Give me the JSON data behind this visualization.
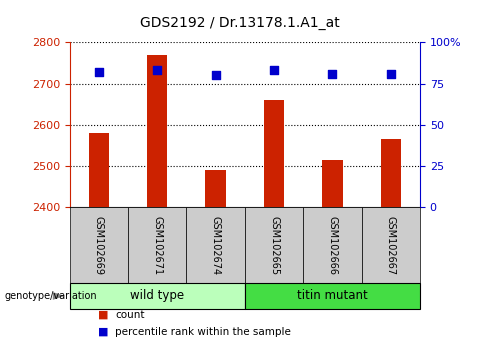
{
  "title": "GDS2192 / Dr.13178.1.A1_at",
  "samples": [
    "GSM102669",
    "GSM102671",
    "GSM102674",
    "GSM102665",
    "GSM102666",
    "GSM102667"
  ],
  "counts": [
    2580,
    2770,
    2490,
    2660,
    2515,
    2565
  ],
  "percentile_ranks": [
    82,
    83,
    80,
    83,
    81,
    81
  ],
  "y_min": 2400,
  "y_max": 2800,
  "y_ticks": [
    2400,
    2500,
    2600,
    2700,
    2800
  ],
  "y2_ticks": [
    0,
    25,
    50,
    75,
    100
  ],
  "y2_labels": [
    "0",
    "25",
    "50",
    "75",
    "100%"
  ],
  "bar_color": "#cc2200",
  "dot_color": "#0000cc",
  "grid_color": "#000000",
  "wild_type_label": "wild type",
  "titin_mutant_label": "titin mutant",
  "wild_type_color": "#bbffbb",
  "titin_mutant_color": "#44dd44",
  "genotype_label": "genotype/variation",
  "legend_count_label": "count",
  "legend_percentile_label": "percentile rank within the sample",
  "xlabel_area_color": "#cccccc",
  "background_color": "#ffffff"
}
